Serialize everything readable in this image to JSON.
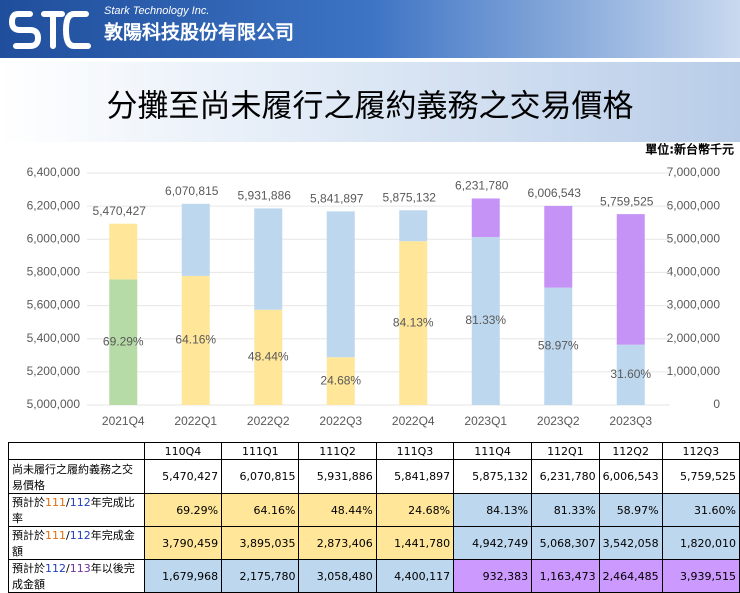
{
  "header": {
    "company_en": "Stark Technology Inc.",
    "company_zh": "敦陽科技股份有限公司"
  },
  "title": "分攤至尚未履行之履約義務之交易價格",
  "unit": "單位:新台幣千元",
  "chart_data": {
    "type": "bar",
    "stacked": true,
    "grid": true,
    "categories": [
      "2021Q4",
      "2022Q1",
      "2022Q2",
      "2022Q3",
      "2022Q4",
      "2023Q1",
      "2023Q2",
      "2023Q3"
    ],
    "series": [
      {
        "name": "預計於111/112年完成金額",
        "axis": "y2",
        "values": [
          3790459,
          3895035,
          2873406,
          1441780,
          4942749,
          5068307,
          3542058,
          1820010
        ],
        "colors": [
          "#b6dba6",
          "#ffe699",
          "#ffe699",
          "#ffe699",
          "#ffe699",
          "#bdd7ee",
          "#bdd7ee",
          "#bdd7ee"
        ]
      },
      {
        "name": "預計於112/113年以後完成金額",
        "axis": "y2",
        "values": [
          1679968,
          2175780,
          3058480,
          4400117,
          932383,
          1163473,
          2464485,
          3939515
        ],
        "colors": [
          "#ffe699",
          "#bdd7ee",
          "#bdd7ee",
          "#bdd7ee",
          "#bdd7ee",
          "#c593f5",
          "#c593f5",
          "#c593f5"
        ]
      }
    ],
    "totals": {
      "values": [
        5470427,
        6070815,
        5931886,
        5841897,
        5875132,
        6231780,
        6006543,
        5759525
      ],
      "value_labels": [
        "5,470,427",
        "6,070,815",
        "5,931,886",
        "5,841,897",
        "5,875,132",
        "6,231,780",
        "6,006,543",
        "5,759,525"
      ]
    },
    "ratios": {
      "values": [
        69.29,
        64.16,
        48.44,
        24.68,
        84.13,
        81.33,
        58.97,
        31.6
      ],
      "value_labels": [
        "69.29%",
        "64.16%",
        "48.44%",
        "24.68%",
        "84.13%",
        "81.33%",
        "58.97%",
        "31.60%"
      ]
    },
    "ylim": [
      5000000,
      6400000
    ],
    "yticks": [
      {
        "value": 5000000,
        "label": "5,000,000"
      },
      {
        "value": 5200000,
        "label": "5,200,000"
      },
      {
        "value": 5400000,
        "label": "5,400,000"
      },
      {
        "value": 5600000,
        "label": "5,600,000"
      },
      {
        "value": 5800000,
        "label": "5,800,000"
      },
      {
        "value": 6000000,
        "label": "6,000,000"
      },
      {
        "value": 6200000,
        "label": "6,200,000"
      },
      {
        "value": 6400000,
        "label": "6,400,000"
      }
    ],
    "y2lim": [
      0,
      7000000
    ],
    "y2ticks": [
      0,
      {
        "value": 1000000,
        "label": "1,000,000"
      },
      {
        "value": 2000000,
        "label": "2,000,000"
      },
      {
        "value": 3000000,
        "label": "3,000,000"
      },
      {
        "value": 4000000,
        "label": "4,000,000"
      },
      {
        "value": 5000000,
        "label": "5,000,000"
      },
      {
        "value": 6000000,
        "label": "6,000,000"
      },
      {
        "value": 7000000,
        "label": "7,000,000"
      }
    ]
  },
  "table": {
    "header": [
      "110Q4",
      "111Q1",
      "111Q2",
      "111Q3",
      "111Q4",
      "112Q1",
      "112Q2",
      "112Q3"
    ],
    "rows": [
      {
        "label": [
          "尚未履行之履約義務之交易價格"
        ],
        "label_colors": [
          null
        ],
        "cells": [
          "5,470,427",
          "6,070,815",
          "5,931,886",
          "5,841,897",
          "5,875,132",
          "6,231,780",
          "6,006,543",
          "5,759,525"
        ],
        "fills": [
          "#ffffff",
          "#ffffff",
          "#ffffff",
          "#ffffff",
          "#ffffff",
          "#ffffff",
          "#ffffff",
          "#ffffff"
        ]
      },
      {
        "label": [
          "預計於",
          "111",
          "/",
          "112",
          "年完成比率"
        ],
        "label_colors": [
          null,
          "#e46c0a",
          null,
          "#1f3fbf",
          null
        ],
        "cells": [
          "69.29%",
          "64.16%",
          "48.44%",
          "24.68%",
          "84.13%",
          "81.33%",
          "58.97%",
          "31.60%"
        ],
        "fills": [
          "#ffe699",
          "#ffe699",
          "#ffe699",
          "#ffe699",
          "#bdd7ee",
          "#bdd7ee",
          "#bdd7ee",
          "#bdd7ee"
        ]
      },
      {
        "label": [
          "預計於",
          "111",
          "/",
          "112",
          "年完成金額"
        ],
        "label_colors": [
          null,
          "#e46c0a",
          null,
          "#1f3fbf",
          null
        ],
        "cells": [
          "3,790,459",
          "3,895,035",
          "2,873,406",
          "1,441,780",
          "4,942,749",
          "5,068,307",
          "3,542,058",
          "1,820,010"
        ],
        "fills": [
          "#ffe699",
          "#ffe699",
          "#ffe699",
          "#ffe699",
          "#bdd7ee",
          "#bdd7ee",
          "#bdd7ee",
          "#bdd7ee"
        ]
      },
      {
        "label": [
          "預計於",
          "112",
          "/",
          "113",
          "年以後完成金額"
        ],
        "label_colors": [
          null,
          "#1f3fbf",
          null,
          "#7030a0",
          null
        ],
        "cells": [
          "1,679,968",
          "2,175,780",
          "3,058,480",
          "4,400,117",
          "932,383",
          "1,163,473",
          "2,464,485",
          "3,939,515"
        ],
        "fills": [
          "#bdd7ee",
          "#bdd7ee",
          "#bdd7ee",
          "#bdd7ee",
          "#cc99ff",
          "#cc99ff",
          "#cc99ff",
          "#cc99ff"
        ]
      }
    ]
  }
}
